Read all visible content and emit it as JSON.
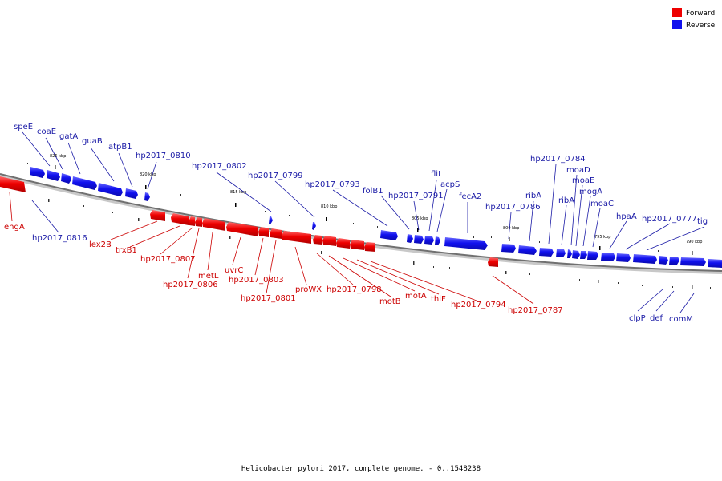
{
  "legend": [
    {
      "label": "Forward",
      "color": "#ee0000"
    },
    {
      "label": "Reverse",
      "color": "#1111ee"
    }
  ],
  "caption": "Helicobacter pylori 2017, complete genome. - 0..1548238",
  "ticks": [
    "825 kbp",
    "820 kbp",
    "815 kbp",
    "810 kbp",
    "805 kbp",
    "800 kbp",
    "795 kbp",
    "790 kbp"
  ],
  "forward_labels": [
    "engA",
    "lex2B",
    "trxB1",
    "hp2017_0807",
    "hp2017_0806",
    "metL",
    "uvrC",
    "hp2017_0803",
    "hp2017_0801",
    "proWX",
    "hp2017_0798",
    "motB",
    "motA",
    "thiF",
    "hp2017_0794",
    "hp2017_0787"
  ],
  "reverse_labels": [
    "speE",
    "coaE",
    "gatA",
    "guaB",
    "atpB1",
    "hp2017_0810",
    "hp2017_0816",
    "hp2017_0802",
    "hp2017_0799",
    "hp2017_0793",
    "folB1",
    "hp2017_0791",
    "fliL",
    "acpS",
    "fecA2",
    "hp2017_0786",
    "ribA",
    "hp2017_0784",
    "moaD",
    "moaE",
    "mogA",
    "ribA",
    "moaC",
    "hpaA",
    "hp2017_0777",
    "tig",
    "clpP",
    "def",
    "comM"
  ]
}
